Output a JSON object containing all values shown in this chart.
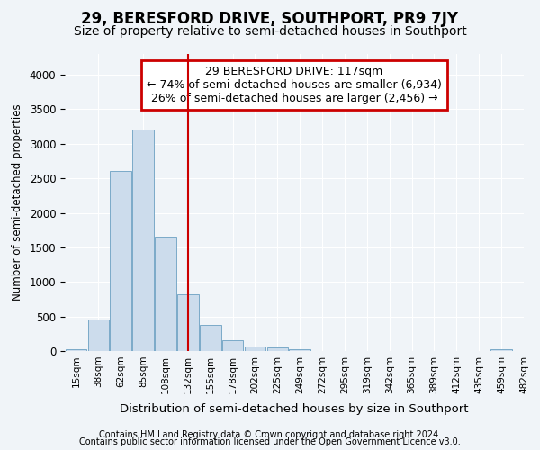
{
  "title": "29, BERESFORD DRIVE, SOUTHPORT, PR9 7JY",
  "subtitle": "Size of property relative to semi-detached houses in Southport",
  "xlabel": "Distribution of semi-detached houses by size in Southport",
  "ylabel": "Number of semi-detached properties",
  "footnote1": "Contains HM Land Registry data © Crown copyright and database right 2024.",
  "footnote2": "Contains public sector information licensed under the Open Government Licence v3.0.",
  "annotation_line1": "29 BERESFORD DRIVE: 117sqm",
  "annotation_line2": "← 74% of semi-detached houses are smaller (6,934)",
  "annotation_line3": "26% of semi-detached houses are larger (2,456) →",
  "bar_color": "#ccdcec",
  "bar_edge_color": "#7aaac8",
  "vline_color": "#cc0000",
  "vline_x": 5.5,
  "bins_left": [
    0,
    1,
    2,
    3,
    4,
    5,
    6,
    7,
    8,
    9,
    10,
    11,
    12,
    13,
    14,
    15,
    16,
    17,
    18,
    19
  ],
  "bin_labels": [
    "15sqm",
    "38sqm",
    "62sqm",
    "85sqm",
    "108sqm",
    "132sqm",
    "155sqm",
    "178sqm",
    "202sqm",
    "225sqm",
    "249sqm",
    "272sqm",
    "295sqm",
    "319sqm",
    "342sqm",
    "365sqm",
    "389sqm",
    "412sqm",
    "435sqm",
    "459sqm",
    "482sqm"
  ],
  "bar_heights": [
    30,
    460,
    2600,
    3200,
    1650,
    820,
    380,
    160,
    70,
    50,
    30,
    0,
    0,
    0,
    0,
    0,
    0,
    0,
    0,
    30
  ],
  "ylim": [
    0,
    4300
  ],
  "yticks": [
    0,
    500,
    1000,
    1500,
    2000,
    2500,
    3000,
    3500,
    4000
  ],
  "background_color": "#f0f4f8",
  "plot_bg_color": "#f0f4f8",
  "grid_color": "#ffffff",
  "title_fontsize": 12,
  "subtitle_fontsize": 10,
  "annotation_box_color": "#ffffff",
  "annotation_box_edge": "#cc0000",
  "n_bars": 20
}
